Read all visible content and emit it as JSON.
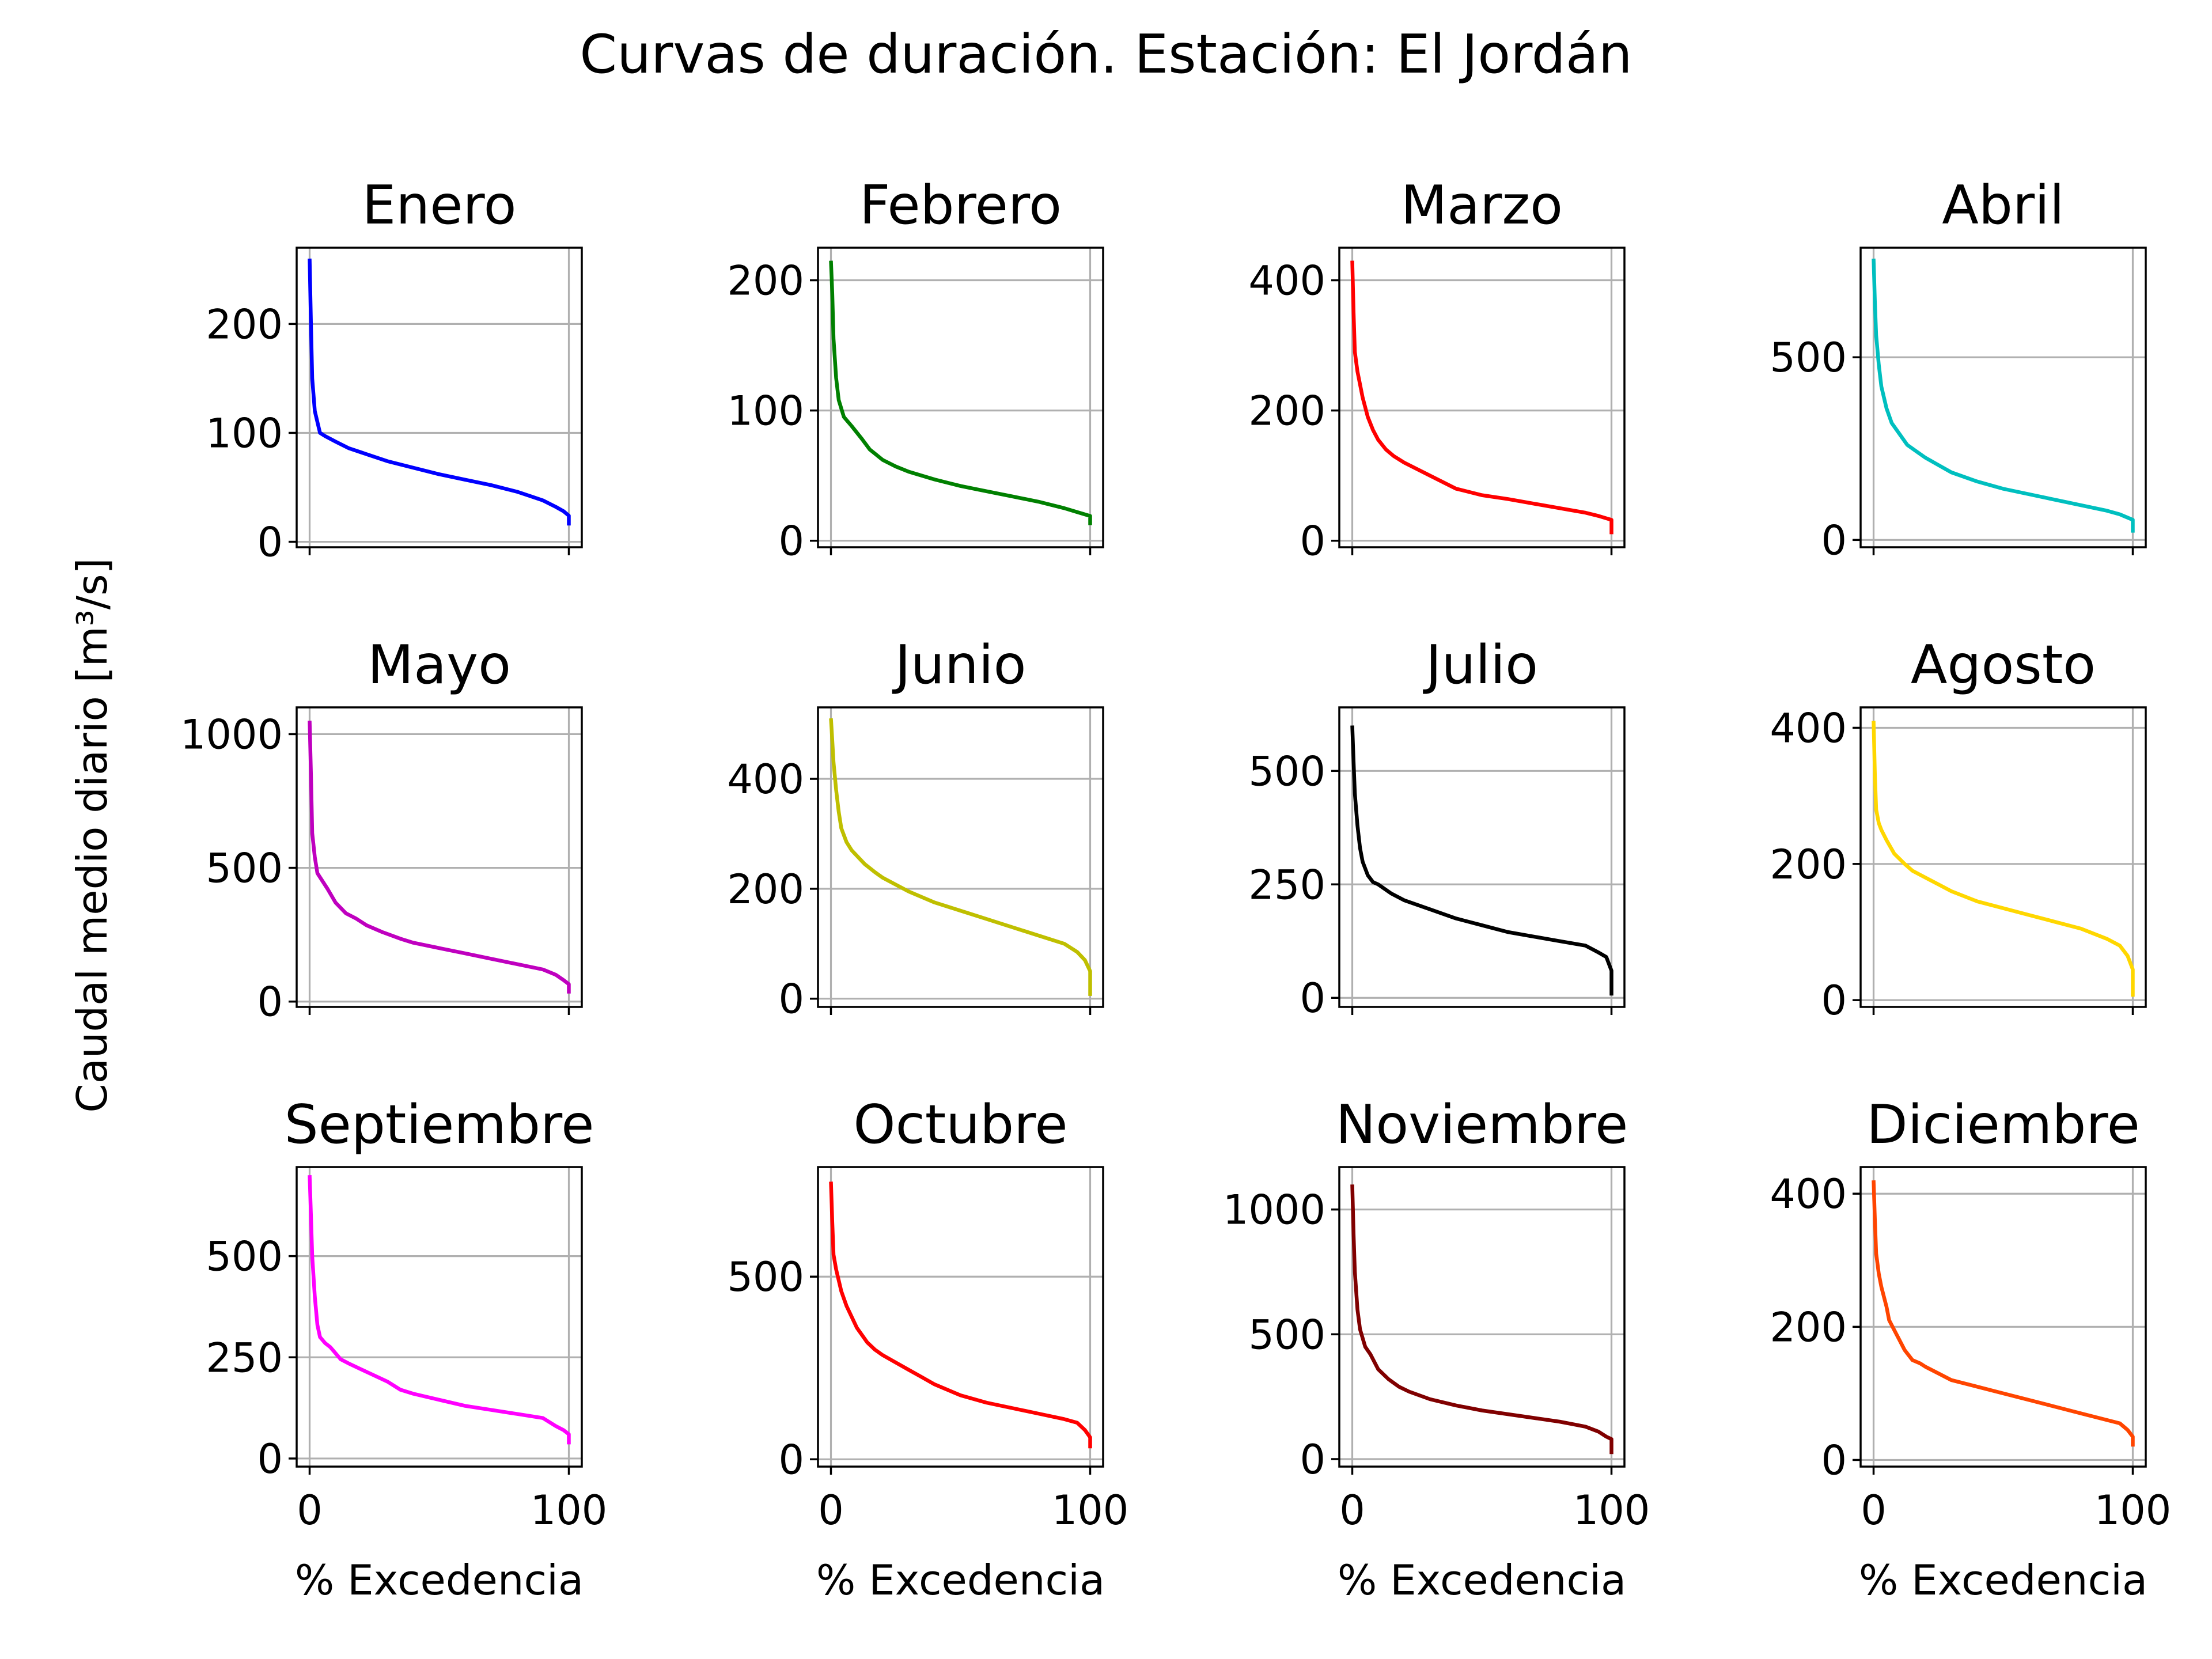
{
  "figure": {
    "title": "Curvas de duración. Estación: El Jordán",
    "ylabel": "Caudal medio diario [m³/s]",
    "xlabel": "% Excedencia"
  },
  "chart_data": [
    {
      "type": "line",
      "title": "Enero",
      "color": "#0000ff",
      "ylim": [
        -5,
        270
      ],
      "yticks": [
        0,
        100,
        200
      ],
      "xlim": [
        -5,
        105
      ],
      "xticks": [
        0,
        100
      ],
      "x": [
        0,
        0.5,
        1,
        2,
        4,
        6,
        10,
        15,
        20,
        25,
        30,
        40,
        50,
        60,
        70,
        80,
        85,
        90,
        95,
        98,
        100,
        100
      ],
      "y": [
        260,
        200,
        150,
        120,
        100,
        97,
        92,
        86,
        82,
        78,
        74,
        68,
        62,
        57,
        52,
        46,
        42,
        38,
        32,
        28,
        24,
        15
      ]
    },
    {
      "type": "line",
      "title": "Febrero",
      "color": "#008000",
      "ylim": [
        -5,
        225
      ],
      "yticks": [
        0,
        100,
        200
      ],
      "xlim": [
        -5,
        105
      ],
      "xticks": [
        0,
        100
      ],
      "x": [
        0,
        0.5,
        1,
        2,
        3,
        5,
        8,
        12,
        15,
        20,
        25,
        30,
        40,
        50,
        60,
        70,
        80,
        90,
        95,
        100,
        100
      ],
      "y": [
        215,
        190,
        155,
        125,
        108,
        95,
        88,
        78,
        70,
        62,
        57,
        53,
        47,
        42,
        38,
        34,
        30,
        25,
        22,
        19,
        12
      ]
    },
    {
      "type": "line",
      "title": "Marzo",
      "color": "#ff0000",
      "ylim": [
        -10,
        450
      ],
      "yticks": [
        0,
        200,
        400
      ],
      "xlim": [
        -5,
        105
      ],
      "xticks": [
        0,
        100
      ],
      "x": [
        0,
        0.5,
        1,
        2,
        4,
        6,
        8,
        10,
        13,
        16,
        20,
        30,
        40,
        50,
        60,
        70,
        80,
        90,
        95,
        100,
        100
      ],
      "y": [
        430,
        350,
        290,
        260,
        220,
        190,
        170,
        155,
        140,
        130,
        120,
        100,
        80,
        70,
        64,
        57,
        50,
        43,
        38,
        32,
        10
      ]
    },
    {
      "type": "line",
      "title": "Abril",
      "color": "#00bfbf",
      "ylim": [
        -20,
        800
      ],
      "yticks": [
        0,
        500
      ],
      "xlim": [
        -5,
        105
      ],
      "xticks": [
        0,
        100
      ],
      "x": [
        0,
        0.5,
        1,
        2,
        3,
        5,
        7,
        10,
        13,
        17,
        20,
        25,
        30,
        40,
        50,
        60,
        70,
        80,
        90,
        95,
        100,
        100
      ],
      "y": [
        770,
        650,
        560,
        480,
        420,
        360,
        320,
        290,
        260,
        240,
        225,
        205,
        185,
        160,
        140,
        125,
        110,
        95,
        80,
        70,
        55,
        20
      ]
    },
    {
      "type": "line",
      "title": "Mayo",
      "color": "#bf00bf",
      "ylim": [
        -20,
        1100
      ],
      "yticks": [
        0,
        500,
        1000
      ],
      "xlim": [
        -5,
        105
      ],
      "xticks": [
        0,
        100
      ],
      "x": [
        0,
        0.5,
        1,
        2,
        3,
        5,
        7,
        10,
        14,
        18,
        22,
        28,
        35,
        40,
        50,
        60,
        70,
        80,
        90,
        95,
        98,
        100,
        100
      ],
      "y": [
        1050,
        850,
        630,
        540,
        480,
        450,
        420,
        370,
        330,
        310,
        285,
        260,
        235,
        220,
        200,
        180,
        160,
        140,
        120,
        100,
        80,
        65,
        30
      ]
    },
    {
      "type": "line",
      "title": "Junio",
      "color": "#bfbf00",
      "ylim": [
        -15,
        530
      ],
      "yticks": [
        0,
        200,
        400
      ],
      "xlim": [
        -5,
        105
      ],
      "xticks": [
        0,
        100
      ],
      "x": [
        0,
        0.5,
        1,
        2,
        3,
        4,
        6,
        8,
        10,
        13,
        17,
        20,
        30,
        40,
        50,
        60,
        70,
        80,
        90,
        95,
        98,
        100,
        100
      ],
      "y": [
        510,
        470,
        430,
        380,
        340,
        310,
        285,
        270,
        260,
        245,
        230,
        220,
        195,
        175,
        160,
        145,
        130,
        115,
        100,
        85,
        70,
        50,
        5
      ]
    },
    {
      "type": "line",
      "title": "Julio",
      "color": "#000000",
      "ylim": [
        -20,
        640
      ],
      "yticks": [
        0,
        250,
        500
      ],
      "xlim": [
        -5,
        105
      ],
      "xticks": [
        0,
        100
      ],
      "x": [
        0,
        0.5,
        1,
        2,
        3,
        4,
        6,
        8,
        10,
        15,
        20,
        30,
        40,
        50,
        60,
        70,
        80,
        90,
        95,
        98,
        100,
        100
      ],
      "y": [
        600,
        520,
        450,
        380,
        330,
        300,
        270,
        255,
        250,
        230,
        215,
        195,
        175,
        160,
        145,
        135,
        125,
        115,
        100,
        90,
        60,
        5
      ]
    },
    {
      "type": "line",
      "title": "Agosto",
      "color": "#ffd700",
      "ylim": [
        -10,
        430
      ],
      "yticks": [
        0,
        200,
        400
      ],
      "xlim": [
        -5,
        105
      ],
      "xticks": [
        0,
        100
      ],
      "x": [
        0,
        0.5,
        1,
        2,
        3,
        5,
        8,
        12,
        15,
        20,
        25,
        30,
        40,
        50,
        60,
        70,
        80,
        90,
        95,
        98,
        100,
        100
      ],
      "y": [
        410,
        330,
        280,
        260,
        250,
        235,
        215,
        200,
        190,
        180,
        170,
        160,
        145,
        135,
        125,
        115,
        105,
        90,
        80,
        65,
        45,
        5
      ]
    },
    {
      "type": "line",
      "title": "Septiembre",
      "color": "#ff00ff",
      "ylim": [
        -20,
        720
      ],
      "yticks": [
        0,
        250,
        500
      ],
      "xlim": [
        -5,
        105
      ],
      "xticks": [
        0,
        100
      ],
      "x": [
        0,
        0.5,
        1,
        2,
        3,
        4,
        6,
        8,
        10,
        12,
        15,
        20,
        25,
        30,
        35,
        40,
        50,
        60,
        70,
        80,
        90,
        95,
        98,
        100,
        100
      ],
      "y": [
        700,
        600,
        500,
        400,
        330,
        300,
        285,
        275,
        260,
        245,
        235,
        220,
        205,
        190,
        170,
        160,
        145,
        130,
        120,
        110,
        100,
        80,
        70,
        60,
        35
      ]
    },
    {
      "type": "line",
      "title": "Octubre",
      "color": "#ff0000",
      "ylim": [
        -20,
        800
      ],
      "yticks": [
        0,
        500
      ],
      "xlim": [
        -5,
        105
      ],
      "xticks": [
        0,
        100
      ],
      "x": [
        0,
        0.5,
        1,
        2,
        4,
        6,
        8,
        10,
        14,
        17,
        20,
        25,
        30,
        35,
        40,
        45,
        50,
        60,
        70,
        80,
        90,
        95,
        98,
        100,
        100
      ],
      "y": [
        760,
        650,
        560,
        520,
        460,
        420,
        390,
        360,
        320,
        300,
        285,
        265,
        245,
        225,
        205,
        190,
        175,
        155,
        140,
        125,
        110,
        100,
        80,
        60,
        30
      ]
    },
    {
      "type": "line",
      "title": "Noviembre",
      "color": "#800000",
      "ylim": [
        -30,
        1170
      ],
      "yticks": [
        0,
        500,
        1000
      ],
      "xlim": [
        -5,
        105
      ],
      "xticks": [
        0,
        100
      ],
      "x": [
        0,
        0.5,
        1,
        2,
        3,
        5,
        7,
        10,
        14,
        18,
        22,
        30,
        40,
        50,
        60,
        70,
        80,
        85,
        90,
        95,
        98,
        100,
        100
      ],
      "y": [
        1100,
        900,
        750,
        600,
        520,
        450,
        420,
        360,
        320,
        290,
        270,
        240,
        215,
        195,
        180,
        165,
        150,
        140,
        130,
        110,
        90,
        80,
        20
      ]
    },
    {
      "type": "line",
      "title": "Diciembre",
      "color": "#ff4500",
      "ylim": [
        -10,
        440
      ],
      "yticks": [
        0,
        200,
        400
      ],
      "xlim": [
        -5,
        105
      ],
      "xticks": [
        0,
        100
      ],
      "x": [
        0,
        0.5,
        1,
        2,
        3,
        4,
        5,
        6,
        8,
        10,
        12,
        15,
        18,
        20,
        25,
        30,
        40,
        50,
        60,
        70,
        80,
        90,
        95,
        98,
        100,
        100
      ],
      "y": [
        420,
        360,
        310,
        280,
        260,
        245,
        230,
        210,
        195,
        180,
        165,
        150,
        145,
        140,
        130,
        120,
        110,
        100,
        90,
        80,
        70,
        60,
        55,
        45,
        35,
        20
      ]
    }
  ]
}
